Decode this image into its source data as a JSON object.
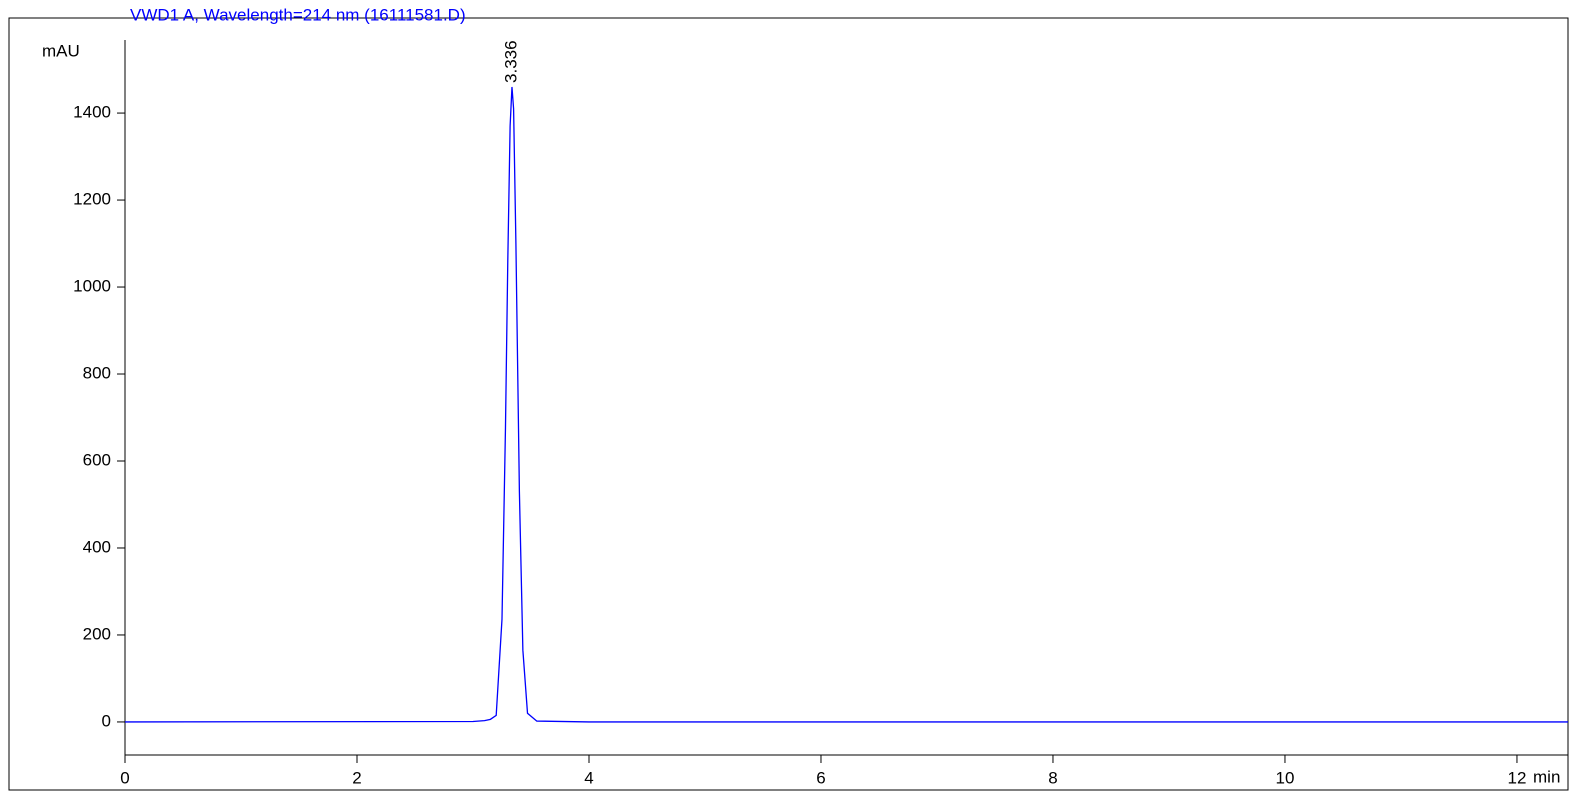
{
  "chart_data": {
    "type": "line",
    "title": "VWD1 A, Wavelength=214 nm (16111581.D)",
    "y_label": "mAU",
    "x_label": "min",
    "x": [
      0,
      3.0,
      3.1,
      3.15,
      3.2,
      3.25,
      3.28,
      3.3,
      3.32,
      3.336,
      3.35,
      3.37,
      3.4,
      3.43,
      3.47,
      3.55,
      4.0,
      12.44
    ],
    "series": [
      {
        "color": "#0000ff",
        "values": [
          0,
          1,
          3,
          6,
          15,
          236,
          676,
          1060,
          1370,
          1460,
          1410,
          1100,
          530,
          165,
          20,
          2,
          0,
          0
        ]
      }
    ],
    "peak_label": {
      "x": 3.336,
      "label": "3.336"
    },
    "xlim": [
      0,
      12.44
    ],
    "ylim": [
      -76,
      1568
    ],
    "xticks": [
      0,
      2,
      4,
      6,
      8,
      10,
      12
    ],
    "yticks": [
      0,
      200,
      400,
      600,
      800,
      1000,
      1200,
      1400
    ]
  }
}
